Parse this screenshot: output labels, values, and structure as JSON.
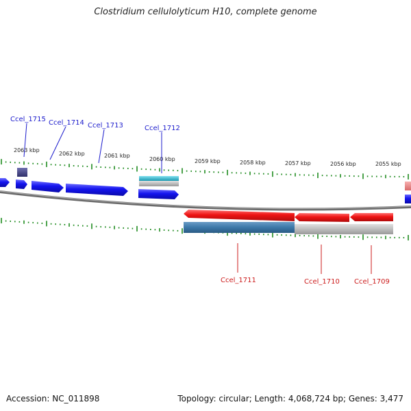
{
  "title": "Clostridium cellulolyticum H10, complete genome",
  "footer": {
    "accession": "Accession: NC_011898",
    "summary": "Topology: circular; Length: 4,068,724 bp; Genes: 3,477"
  },
  "scale_labels": [
    "2063 kbp",
    "2062 kbp",
    "2061 kbp",
    "2060 kbp",
    "2059 kbp",
    "2058 kbp",
    "2057 kbp",
    "2056 kbp",
    "2055 kbp"
  ],
  "forward_genes": [
    "Ccel_1715",
    "Ccel_1714",
    "Ccel_1713",
    "Ccel_1712"
  ],
  "reverse_genes": [
    "Ccel_1711",
    "Ccel_1710",
    "Ccel_1709"
  ],
  "colors": {
    "forward_gene": "#1010e8",
    "reverse_gene": "#e81010",
    "backbone": "#808080",
    "tick": "#1e8a1e",
    "rna": "#2aa8c0",
    "misc": "#3c78a8"
  }
}
